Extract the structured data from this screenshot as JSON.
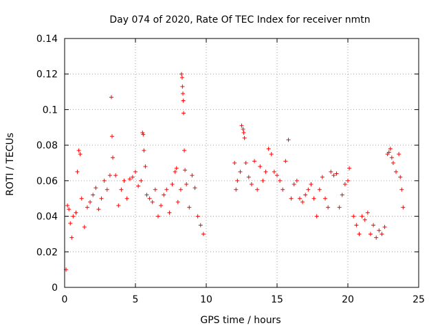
{
  "chart_data": {
    "type": "scatter",
    "title": "Day 074 of 2020, Rate Of TEC Index for receiver nmtn",
    "xlabel": "GPS time / hours",
    "ylabel": "ROTI / TECUs",
    "xlim": [
      0,
      25
    ],
    "ylim": [
      0,
      0.14
    ],
    "xticks": [
      0,
      5,
      10,
      15,
      20,
      25
    ],
    "yticks": [
      0,
      0.02,
      0.04,
      0.06,
      0.08,
      0.1,
      0.12,
      0.14
    ],
    "xtick_labels": [
      "0",
      "5",
      "10",
      "15",
      "20",
      "25"
    ],
    "ytick_labels": [
      "0",
      "0.02",
      "0.04",
      "0.06",
      "0.08",
      "0.1",
      "0.12",
      "0.14"
    ],
    "grid": true,
    "marker": "plus",
    "color": "#ff0000",
    "series": [
      {
        "name": "",
        "points": [
          [
            0.1,
            0.01
          ],
          [
            0.2,
            0.046
          ],
          [
            0.3,
            0.044
          ],
          [
            0.4,
            0.036
          ],
          [
            0.5,
            0.028
          ],
          [
            0.6,
            0.04
          ],
          [
            0.8,
            0.042
          ],
          [
            0.9,
            0.065
          ],
          [
            1.0,
            0.077
          ],
          [
            1.1,
            0.075
          ],
          [
            1.2,
            0.05
          ],
          [
            1.4,
            0.034
          ],
          [
            1.6,
            0.045
          ],
          [
            1.8,
            0.048
          ],
          [
            2.0,
            0.052
          ],
          [
            2.2,
            0.056
          ],
          [
            2.4,
            0.044
          ],
          [
            2.6,
            0.05
          ],
          [
            2.8,
            0.06
          ],
          [
            3.0,
            0.055
          ],
          [
            3.2,
            0.063
          ],
          [
            3.3,
            0.107
          ],
          [
            3.35,
            0.085
          ],
          [
            3.4,
            0.073
          ],
          [
            3.6,
            0.063
          ],
          [
            3.8,
            0.046
          ],
          [
            4.0,
            0.055
          ],
          [
            4.2,
            0.06
          ],
          [
            4.4,
            0.05
          ],
          [
            4.6,
            0.061
          ],
          [
            4.8,
            0.062
          ],
          [
            5.0,
            0.065
          ],
          [
            5.2,
            0.057
          ],
          [
            5.4,
            0.06
          ],
          [
            5.5,
            0.087
          ],
          [
            5.55,
            0.086
          ],
          [
            5.6,
            0.077
          ],
          [
            5.7,
            0.068
          ],
          [
            5.8,
            0.052
          ],
          [
            6.0,
            0.05
          ],
          [
            6.2,
            0.048
          ],
          [
            6.4,
            0.055
          ],
          [
            6.6,
            0.04
          ],
          [
            6.8,
            0.046
          ],
          [
            7.0,
            0.052
          ],
          [
            7.2,
            0.055
          ],
          [
            7.4,
            0.042
          ],
          [
            7.6,
            0.058
          ],
          [
            7.8,
            0.065
          ],
          [
            7.9,
            0.067
          ],
          [
            8.0,
            0.048
          ],
          [
            8.2,
            0.055
          ],
          [
            8.25,
            0.12
          ],
          [
            8.3,
            0.118
          ],
          [
            8.32,
            0.113
          ],
          [
            8.35,
            0.109
          ],
          [
            8.38,
            0.105
          ],
          [
            8.4,
            0.098
          ],
          [
            8.45,
            0.077
          ],
          [
            8.5,
            0.066
          ],
          [
            8.6,
            0.058
          ],
          [
            8.8,
            0.045
          ],
          [
            9.0,
            0.063
          ],
          [
            9.2,
            0.056
          ],
          [
            9.4,
            0.04
          ],
          [
            9.6,
            0.035
          ],
          [
            9.8,
            0.03
          ],
          [
            12.0,
            0.07
          ],
          [
            12.1,
            0.055
          ],
          [
            12.2,
            0.06
          ],
          [
            12.4,
            0.065
          ],
          [
            12.5,
            0.091
          ],
          [
            12.6,
            0.089
          ],
          [
            12.65,
            0.087
          ],
          [
            12.7,
            0.084
          ],
          [
            12.8,
            0.07
          ],
          [
            13.0,
            0.062
          ],
          [
            13.2,
            0.058
          ],
          [
            13.4,
            0.071
          ],
          [
            13.6,
            0.055
          ],
          [
            13.8,
            0.068
          ],
          [
            14.0,
            0.06
          ],
          [
            14.2,
            0.065
          ],
          [
            14.4,
            0.078
          ],
          [
            14.6,
            0.075
          ],
          [
            14.8,
            0.065
          ],
          [
            15.0,
            0.063
          ],
          [
            15.2,
            0.06
          ],
          [
            15.4,
            0.055
          ],
          [
            15.6,
            0.071
          ],
          [
            15.8,
            0.083
          ],
          [
            16.0,
            0.05
          ],
          [
            16.2,
            0.058
          ],
          [
            16.4,
            0.06
          ],
          [
            16.6,
            0.05
          ],
          [
            16.8,
            0.048
          ],
          [
            17.0,
            0.052
          ],
          [
            17.2,
            0.055
          ],
          [
            17.4,
            0.058
          ],
          [
            17.6,
            0.05
          ],
          [
            17.8,
            0.04
          ],
          [
            18.0,
            0.055
          ],
          [
            18.2,
            0.062
          ],
          [
            18.4,
            0.05
          ],
          [
            18.6,
            0.045
          ],
          [
            18.8,
            0.065
          ],
          [
            19.0,
            0.063
          ],
          [
            19.2,
            0.064
          ],
          [
            19.4,
            0.045
          ],
          [
            19.6,
            0.052
          ],
          [
            19.8,
            0.058
          ],
          [
            20.0,
            0.06
          ],
          [
            20.1,
            0.067
          ],
          [
            20.4,
            0.04
          ],
          [
            20.6,
            0.035
          ],
          [
            20.8,
            0.03
          ],
          [
            21.0,
            0.04
          ],
          [
            21.2,
            0.038
          ],
          [
            21.4,
            0.042
          ],
          [
            21.6,
            0.03
          ],
          [
            21.8,
            0.035
          ],
          [
            22.0,
            0.028
          ],
          [
            22.2,
            0.032
          ],
          [
            22.4,
            0.03
          ],
          [
            22.6,
            0.034
          ],
          [
            22.8,
            0.075
          ],
          [
            22.9,
            0.076
          ],
          [
            23.0,
            0.078
          ],
          [
            23.1,
            0.073
          ],
          [
            23.2,
            0.07
          ],
          [
            23.4,
            0.065
          ],
          [
            23.6,
            0.075
          ],
          [
            23.7,
            0.062
          ],
          [
            23.8,
            0.055
          ],
          [
            23.9,
            0.045
          ]
        ]
      }
    ]
  }
}
